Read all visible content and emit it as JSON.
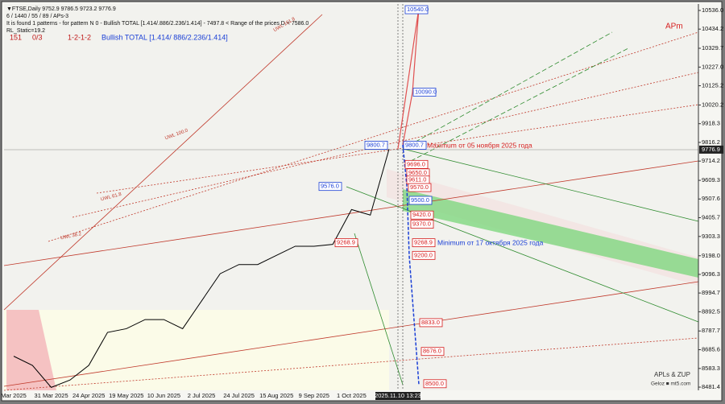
{
  "chart_data": {
    "type": "line",
    "header": {
      "symbol_line": "▼FTSE,Daily  9752.9 9786.5 9723.2 9776.9",
      "params_line": "6 / 1440 / 55 / 89 / APs-3",
      "pattern_line": "It is found 1 patterns  -  for pattern N 0 - Bullish TOTAL [1.414/.886/2.236/1.414]  -  7497.8 < Range of the prices D < 7586.0",
      "static_line": "RL_Static=19.2",
      "counter_a": "151",
      "counter_b": "0/3",
      "sequence": "1-2-1-2",
      "pattern_name": "Bullish TOTAL [1.414/ 886/2.236/1.414]",
      "corner_tag": "APm"
    },
    "annotations": {
      "maximum": "Maximum от 05 ноября 2025 года",
      "minimum": "Minimum от 17 октября 2025 года",
      "uwl_161": "UWL 161.8",
      "uwl_100": "UWL 100.0",
      "uwl_61": "UWL 61.8",
      "uwl_38": "UWL 38.2",
      "brand": "APLs & ZUP",
      "site": "Geloz ■ mt5.com"
    },
    "categories": [
      "Mar 2025",
      null,
      "31 Mar 2025",
      null,
      "24 Apr 2025",
      null,
      "19 May 2025",
      null,
      "10 Jun 2025",
      null,
      "2 Jul 2025",
      null,
      "24 Jul 2025",
      null,
      "15 Aug 2025",
      null,
      "9 Sep 2025",
      null,
      "1 Oct 2025",
      null,
      null
    ],
    "cursor_label": "2025.11.10 13:23",
    "series": [
      {
        "name": "FTSE",
        "color": "#000000",
        "values": [
          8650,
          8600,
          8480,
          8520,
          8600,
          8780,
          8800,
          8850,
          8850,
          8800,
          8950,
          9100,
          9150,
          9150,
          9200,
          9250,
          9250,
          9260,
          9450,
          9420,
          9780
        ]
      }
    ],
    "current_price": {
      "value": 9776.9,
      "label": "9776.9"
    },
    "levels": {
      "values": [
        10540,
        10090,
        9800.7,
        9800.7,
        9696,
        9650,
        9611,
        9570,
        9576,
        9500,
        9420,
        9370,
        9268.9,
        9268.9,
        9200,
        8833,
        8676,
        8500
      ],
      "value_labels": [
        "10540.0",
        "10090.0",
        "9800.7",
        "9800.7",
        "9696.0",
        "9650.0",
        "9611.0",
        "9570.0",
        "9576.0",
        "9500.0",
        "9420.0",
        "9370.0",
        "9268.9",
        "9268.9",
        "9200.0",
        "8833.0",
        "8676.0",
        "8500.0"
      ],
      "colors": [
        "#1a3fd6",
        "#1a3fd6",
        "#1a3fd6",
        "#1a3fd6",
        "#d61a1a",
        "#d61a1a",
        "#d61a1a",
        "#d61a1a",
        "#1a3fd6",
        "#1a3fd6",
        "#d61a1a",
        "#d61a1a",
        "#d61a1a",
        "#d61a1a",
        "#d61a1a",
        "#d61a1a",
        "#d61a1a",
        "#d61a1a"
      ]
    },
    "ylim": [
      8464,
      10571
    ],
    "yticks": [
      {
        "value": 10536,
        "label": "10536.0"
      },
      {
        "value": 10434.2,
        "label": "10434.2"
      },
      {
        "value": 10329.7,
        "label": "10329.7"
      },
      {
        "value": 10227,
        "label": "10227.0"
      },
      {
        "value": 10125.2,
        "label": "10125.2"
      },
      {
        "value": 10020.2,
        "label": "10020.2"
      },
      {
        "value": 9918.3,
        "label": "9918.3"
      },
      {
        "value": 9816.2,
        "label": "9816.2"
      },
      {
        "value": 9714.2,
        "label": "9714.2"
      },
      {
        "value": 9609.3,
        "label": "9609.3"
      },
      {
        "value": 9507.6,
        "label": "9507.6"
      },
      {
        "value": 9405.7,
        "label": "9405.7"
      },
      {
        "value": 9303.3,
        "label": "9303.3"
      },
      {
        "value": 9198,
        "label": "9198.0"
      },
      {
        "value": 9096.3,
        "label": "9096.3"
      },
      {
        "value": 8994.7,
        "label": "8994.7"
      },
      {
        "value": 8892.5,
        "label": "8892.5"
      },
      {
        "value": 8787.7,
        "label": "8787.7"
      },
      {
        "value": 8685.6,
        "label": "8685.6"
      },
      {
        "value": 8583.3,
        "label": "8583.3"
      },
      {
        "value": 8481.4,
        "label": "8481.4"
      }
    ]
  }
}
